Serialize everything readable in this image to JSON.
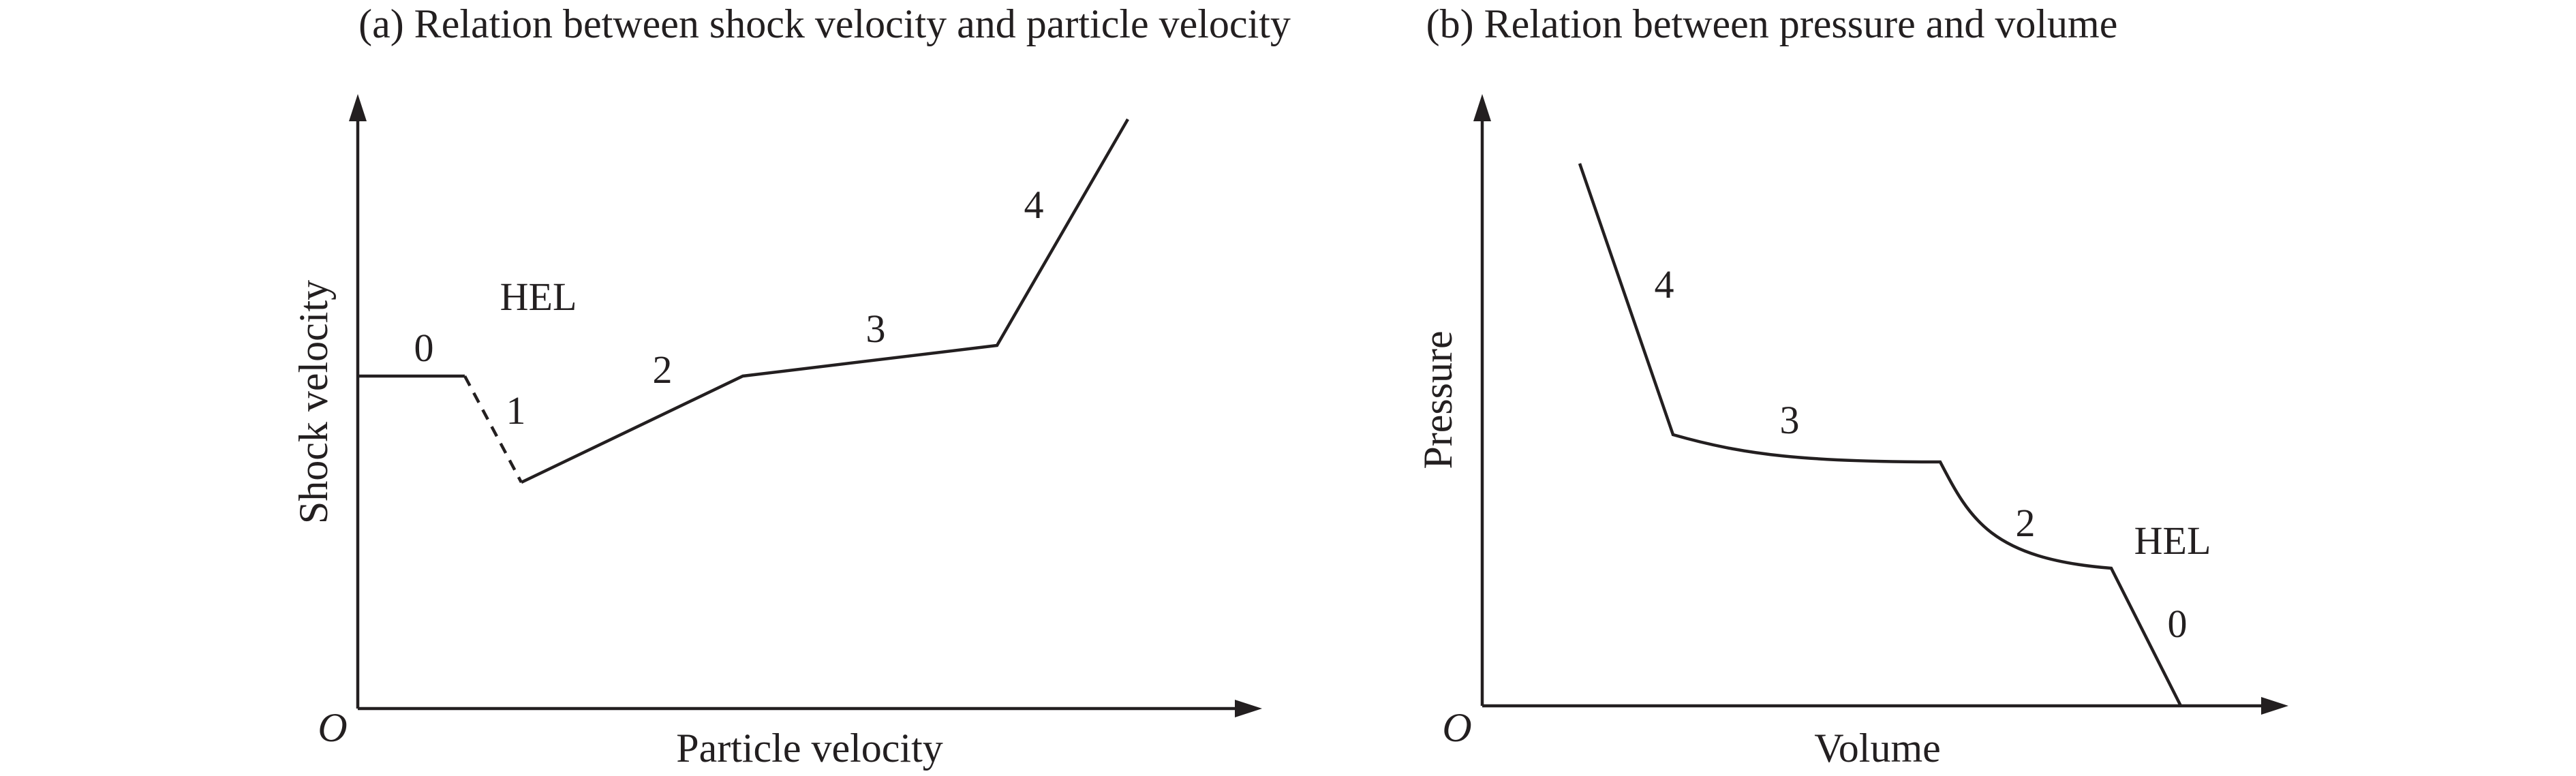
{
  "panels": [
    {
      "id": "a",
      "title": "(a) Relation between shock velocity and particle velocity",
      "origin_label": "O",
      "x_axis_label": "Particle velocity",
      "y_axis_label": "Shock velocity",
      "hel_label": "HEL",
      "segment_labels": [
        "0",
        "1",
        "2",
        "3",
        "4"
      ]
    },
    {
      "id": "b",
      "title": "(b) Relation between pressure and volume",
      "origin_label": "O",
      "x_axis_label": "Volume",
      "y_axis_label": "Pressure",
      "hel_label": "HEL",
      "segment_labels": [
        "4",
        "3",
        "2",
        "0"
      ]
    }
  ]
}
